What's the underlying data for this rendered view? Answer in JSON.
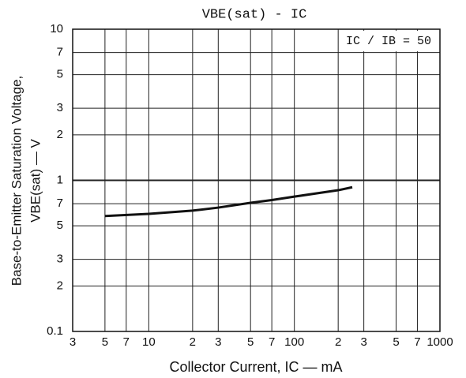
{
  "chart_data": {
    "type": "line",
    "title": "VBE(sat) - IC",
    "annotation": "IC / IB = 50",
    "x_label": "Collector Current, IC — mA",
    "y_label": [
      "Base-to-Emitter Saturation Voltage,",
      "VBE(sat) — V"
    ],
    "x": [
      5,
      10,
      20,
      30,
      50,
      70,
      100,
      200,
      250
    ],
    "series": [
      {
        "color": "#111111",
        "values": [
          0.58,
          0.6,
          0.63,
          0.66,
          0.71,
          0.74,
          0.78,
          0.86,
          0.9
        ]
      }
    ],
    "xlog": true,
    "ylog": true,
    "xlim": [
      3,
      1000
    ],
    "ylim": [
      0.1,
      10
    ],
    "xticks": [
      3,
      5,
      7,
      10,
      {
        "value": 20,
        "label": "2"
      },
      {
        "value": 30,
        "label": "3"
      },
      {
        "value": 50,
        "label": "5"
      },
      {
        "value": 70,
        "label": "7"
      },
      100,
      {
        "value": 200,
        "label": "2"
      },
      {
        "value": 300,
        "label": "3"
      },
      {
        "value": 500,
        "label": "5"
      },
      {
        "value": 700,
        "label": "7"
      },
      1000
    ],
    "yticks": [
      0.1,
      {
        "value": 0.2,
        "label": "2"
      },
      {
        "value": 0.3,
        "label": "3"
      },
      {
        "value": 0.5,
        "label": "5"
      },
      {
        "value": 0.7,
        "label": "7"
      },
      1,
      2,
      3,
      5,
      7,
      10
    ],
    "grid": true
  }
}
